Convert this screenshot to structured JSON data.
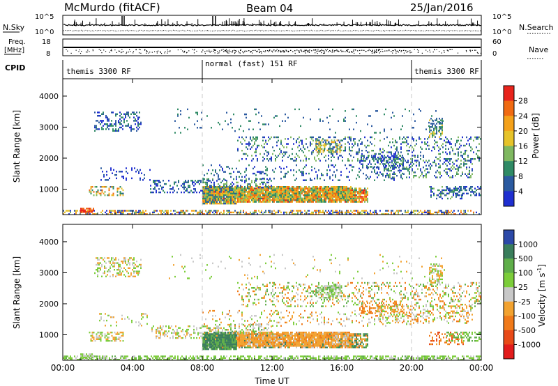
{
  "header": {
    "station": "McMurdo",
    "mode": "(fitACF)",
    "beam": "Beam 04",
    "date": "25/Jan/2016"
  },
  "strips": {
    "nsky_label": "N.Sky",
    "nsearch_label": "N.Search",
    "noise_ticks_left": [
      "10^5",
      "10^0"
    ],
    "noise_ticks_right": [
      "10^5",
      "10^0"
    ],
    "freq_label": "Freq.",
    "freq_unit": "[MHz]",
    "freq_ticks": [
      "18",
      "8"
    ],
    "nave_label": "Nave",
    "nave_ticks": [
      "60",
      "0"
    ],
    "cpid_label": "CPID",
    "cpid_segments": [
      "themis 3300 RF",
      "normal (fast) 151 RF",
      "themis 3300 RF"
    ]
  },
  "chart_data": [
    {
      "type": "heatmap",
      "panel": "power",
      "ylabel": "Slant Range [km]",
      "xlabel": "Time UT",
      "ylim": [
        180,
        4560
      ],
      "yticks": [
        1000,
        2000,
        3000,
        4000
      ],
      "xticks": [
        "00:00",
        "04:00",
        "08:00",
        "12:00",
        "16:00",
        "20:00",
        "00:00"
      ],
      "xlim_hours": [
        0,
        24
      ],
      "mode_change_hours": [
        8,
        20
      ],
      "colorbar": {
        "label": "Power [dB]",
        "ticks": [
          "28",
          "24",
          "20",
          "16",
          "12",
          "8",
          "4"
        ],
        "colors": [
          "#e8241c",
          "#f06a12",
          "#f4a11a",
          "#e6c32a",
          "#7fb861",
          "#2f8a65",
          "#2b5aa0",
          "#1f2fd0"
        ]
      }
    },
    {
      "type": "heatmap",
      "panel": "velocity",
      "ylabel": "Slant Range [km]",
      "xlabel": "Time UT",
      "ylim": [
        180,
        4560
      ],
      "yticks": [
        1000,
        2000,
        3000,
        4000
      ],
      "xticks": [
        "00:00",
        "04:00",
        "08:00",
        "12:00",
        "16:00",
        "20:00",
        "00:00"
      ],
      "xlim_hours": [
        0,
        24
      ],
      "mode_change_hours": [
        8,
        20
      ],
      "colorbar": {
        "label": "Velocity",
        "label_unit": "[m s",
        "label_exp": "-1",
        "label_close": "]",
        "ticks": [
          "1000",
          "500",
          "100",
          "25",
          "-25",
          "-100",
          "-500",
          "-1000"
        ],
        "colors": [
          "#2c49a8",
          "#3a7e5c",
          "#5fae4a",
          "#7ccd3a",
          "#c8c8c8",
          "#f2a230",
          "#f07a1a",
          "#e84a18",
          "#e21c1c"
        ]
      }
    }
  ]
}
